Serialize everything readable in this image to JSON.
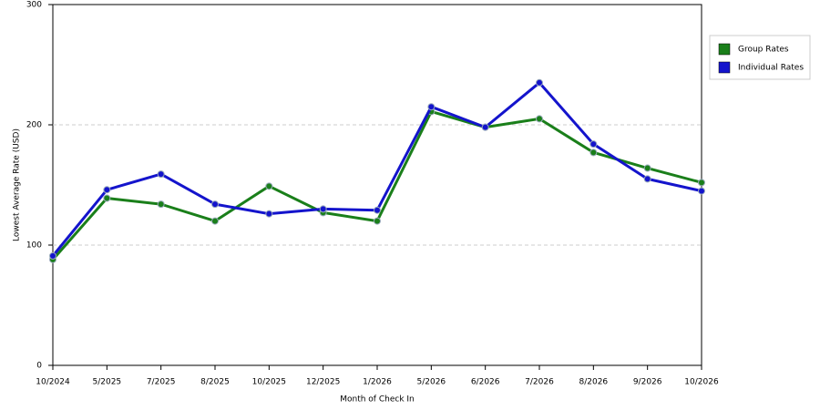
{
  "chart_data": {
    "type": "line",
    "x_label": "Month of Check In",
    "y_label": "Lowest Average Rate (USD)",
    "categories": [
      "10/2024",
      "5/2025",
      "7/2025",
      "8/2025",
      "10/2025",
      "12/2025",
      "1/2026",
      "5/2026",
      "6/2026",
      "7/2026",
      "8/2026",
      "9/2026",
      "10/2026"
    ],
    "series": [
      {
        "name": "Group Rates",
        "color": "#1a7f1a",
        "values": [
          88,
          139,
          134,
          120,
          149,
          127,
          120,
          211,
          198,
          205,
          177,
          164,
          152
        ]
      },
      {
        "name": "Individual Rates",
        "color": "#1414cc",
        "values": [
          91,
          146,
          159,
          134,
          126,
          130,
          129,
          215,
          198,
          235,
          184,
          155,
          145
        ]
      }
    ],
    "ylim": [
      0,
      300
    ],
    "yticks": [
      0,
      100,
      200,
      300
    ],
    "grid": true,
    "legend": "right"
  }
}
